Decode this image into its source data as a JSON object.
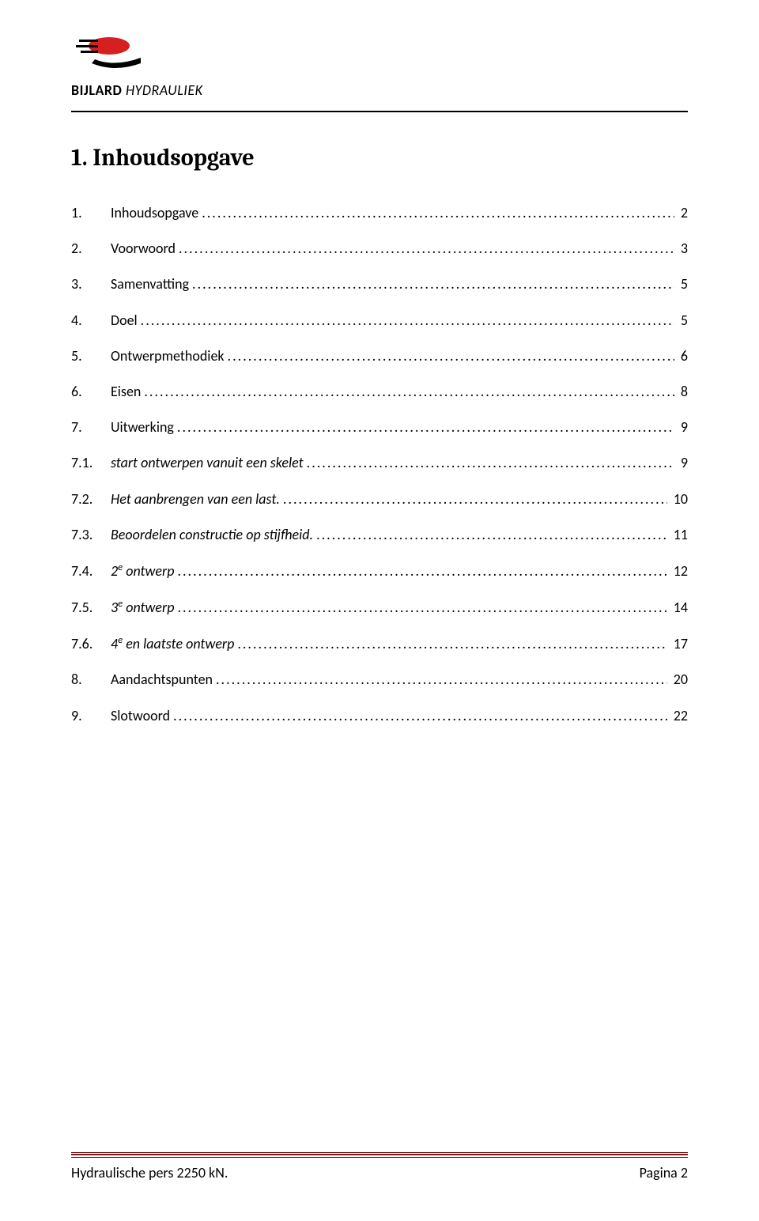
{
  "header": {
    "company_bold": "BIJLARD",
    "company_light": "HYDRAULIEK",
    "logo_colors": {
      "red": "#d6201f",
      "black": "#000000"
    }
  },
  "heading": {
    "number": "1.",
    "title": "Inhoudsopgave"
  },
  "toc": [
    {
      "num": "1.",
      "title": "Inhoudsopgave",
      "page": "2",
      "italic": false
    },
    {
      "num": "2.",
      "title": "Voorwoord",
      "page": "3",
      "italic": false
    },
    {
      "num": "3.",
      "title": "Samenvatting",
      "page": "5",
      "italic": false
    },
    {
      "num": "4.",
      "title": "Doel",
      "page": "5",
      "italic": false
    },
    {
      "num": "5.",
      "title": " Ontwerpmethodiek",
      "page": "6",
      "italic": false
    },
    {
      "num": "6.",
      "title": "Eisen",
      "page": "8",
      "italic": false
    },
    {
      "num": "7.",
      "title": "Uitwerking",
      "page": "9",
      "italic": false
    },
    {
      "num": "7.1.",
      "title": "start ontwerpen vanuit een skelet",
      "page": "9",
      "italic": true
    },
    {
      "num": "7.2.",
      "title": "Het aanbrengen van een last.",
      "page": "10",
      "italic": true
    },
    {
      "num": "7.3.",
      "title": "Beoordelen constructie op stijfheid.",
      "page": "11",
      "italic": true
    },
    {
      "num": "7.4.",
      "title": " 2<sup>e</sup> ontwerp",
      "page": "12",
      "italic": true,
      "html": true
    },
    {
      "num": "7.5.",
      "title": "3<sup>e</sup> ontwerp",
      "page": "14",
      "italic": true,
      "html": true
    },
    {
      "num": "7.6.",
      "title": "4<sup>e</sup> en laatste ontwerp",
      "page": "17",
      "italic": true,
      "html": true
    },
    {
      "num": "8.",
      "title": "Aandachtspunten",
      "page": "20",
      "italic": false
    },
    {
      "num": "9.",
      "title": "Slotwoord",
      "page": "22",
      "italic": false
    }
  ],
  "footer": {
    "left": "Hydraulische pers 2250 kN.",
    "right": "Pagina 2",
    "rule_color": "#7a1a1a"
  }
}
